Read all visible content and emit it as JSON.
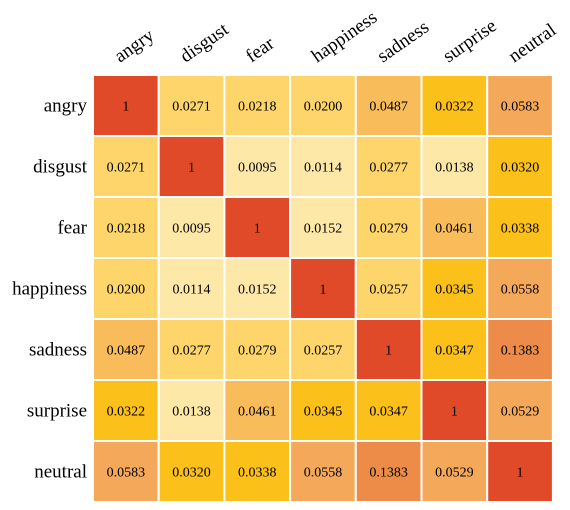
{
  "chart_data": {
    "type": "heatmap",
    "title": "",
    "xlabel": "",
    "ylabel": "",
    "x_categories": [
      "angry",
      "disgust",
      "fear",
      "happiness",
      "sadness",
      "surprise",
      "neutral"
    ],
    "y_categories": [
      "angry",
      "disgust",
      "fear",
      "happiness",
      "sadness",
      "surprise",
      "neutral"
    ],
    "values": [
      [
        1,
        0.0271,
        0.0218,
        0.02,
        0.0487,
        0.0322,
        0.0583
      ],
      [
        0.0271,
        1,
        0.0095,
        0.0114,
        0.0277,
        0.0138,
        0.032
      ],
      [
        0.0218,
        0.0095,
        1,
        0.0152,
        0.0279,
        0.0461,
        0.0338
      ],
      [
        0.02,
        0.0114,
        0.0152,
        1,
        0.0257,
        0.0345,
        0.0558
      ],
      [
        0.0487,
        0.0277,
        0.0279,
        0.0257,
        1,
        0.0347,
        0.1383
      ],
      [
        0.0322,
        0.0138,
        0.0461,
        0.0345,
        0.0347,
        1,
        0.0529
      ],
      [
        0.0583,
        0.032,
        0.0338,
        0.0558,
        0.1383,
        0.0529,
        1
      ]
    ],
    "value_labels": [
      [
        "1",
        "0.0271",
        "0.0218",
        "0.0200",
        "0.0487",
        "0.0322",
        "0.0583"
      ],
      [
        "0.0271",
        "1",
        "0.0095",
        "0.0114",
        "0.0277",
        "0.0138",
        "0.0320"
      ],
      [
        "0.0218",
        "0.0095",
        "1",
        "0.0152",
        "0.0279",
        "0.0461",
        "0.0338"
      ],
      [
        "0.0200",
        "0.0114",
        "0.0152",
        "1",
        "0.0257",
        "0.0345",
        "0.0558"
      ],
      [
        "0.0487",
        "0.0277",
        "0.0279",
        "0.0257",
        "1",
        "0.0347",
        "0.1383"
      ],
      [
        "0.0322",
        "0.0138",
        "0.0461",
        "0.0345",
        "0.0347",
        "1",
        "0.0529"
      ],
      [
        "0.0583",
        "0.0320",
        "0.0338",
        "0.0558",
        "0.1383",
        "0.0529",
        "1"
      ]
    ],
    "cell_colors": [
      [
        "#e04a28",
        "#fdd56a",
        "#fdd56a",
        "#fdd56a",
        "#f9bc5a",
        "#fcc01a",
        "#f4a95a"
      ],
      [
        "#fdd56a",
        "#e04a28",
        "#fee8a8",
        "#fee8a8",
        "#fdd56a",
        "#fee8a8",
        "#fcc01a"
      ],
      [
        "#fdd56a",
        "#fee8a8",
        "#e04a28",
        "#fee8a8",
        "#fdd56a",
        "#f9bc5a",
        "#fcc01a"
      ],
      [
        "#fdd56a",
        "#fee8a8",
        "#fee8a8",
        "#e04a28",
        "#fdd56a",
        "#fcc01a",
        "#f4a95a"
      ],
      [
        "#f9bc5a",
        "#fdd56a",
        "#fdd56a",
        "#fdd56a",
        "#e04a28",
        "#fcc01a",
        "#ec8c48"
      ],
      [
        "#fcc01a",
        "#fee8a8",
        "#f9bc5a",
        "#fcc01a",
        "#fcc01a",
        "#e04a28",
        "#f4a95a"
      ],
      [
        "#f4a95a",
        "#fcc01a",
        "#fcc01a",
        "#f4a95a",
        "#ec8c48",
        "#f4a95a",
        "#e04a28"
      ]
    ],
    "grid": true,
    "legend": "none"
  }
}
